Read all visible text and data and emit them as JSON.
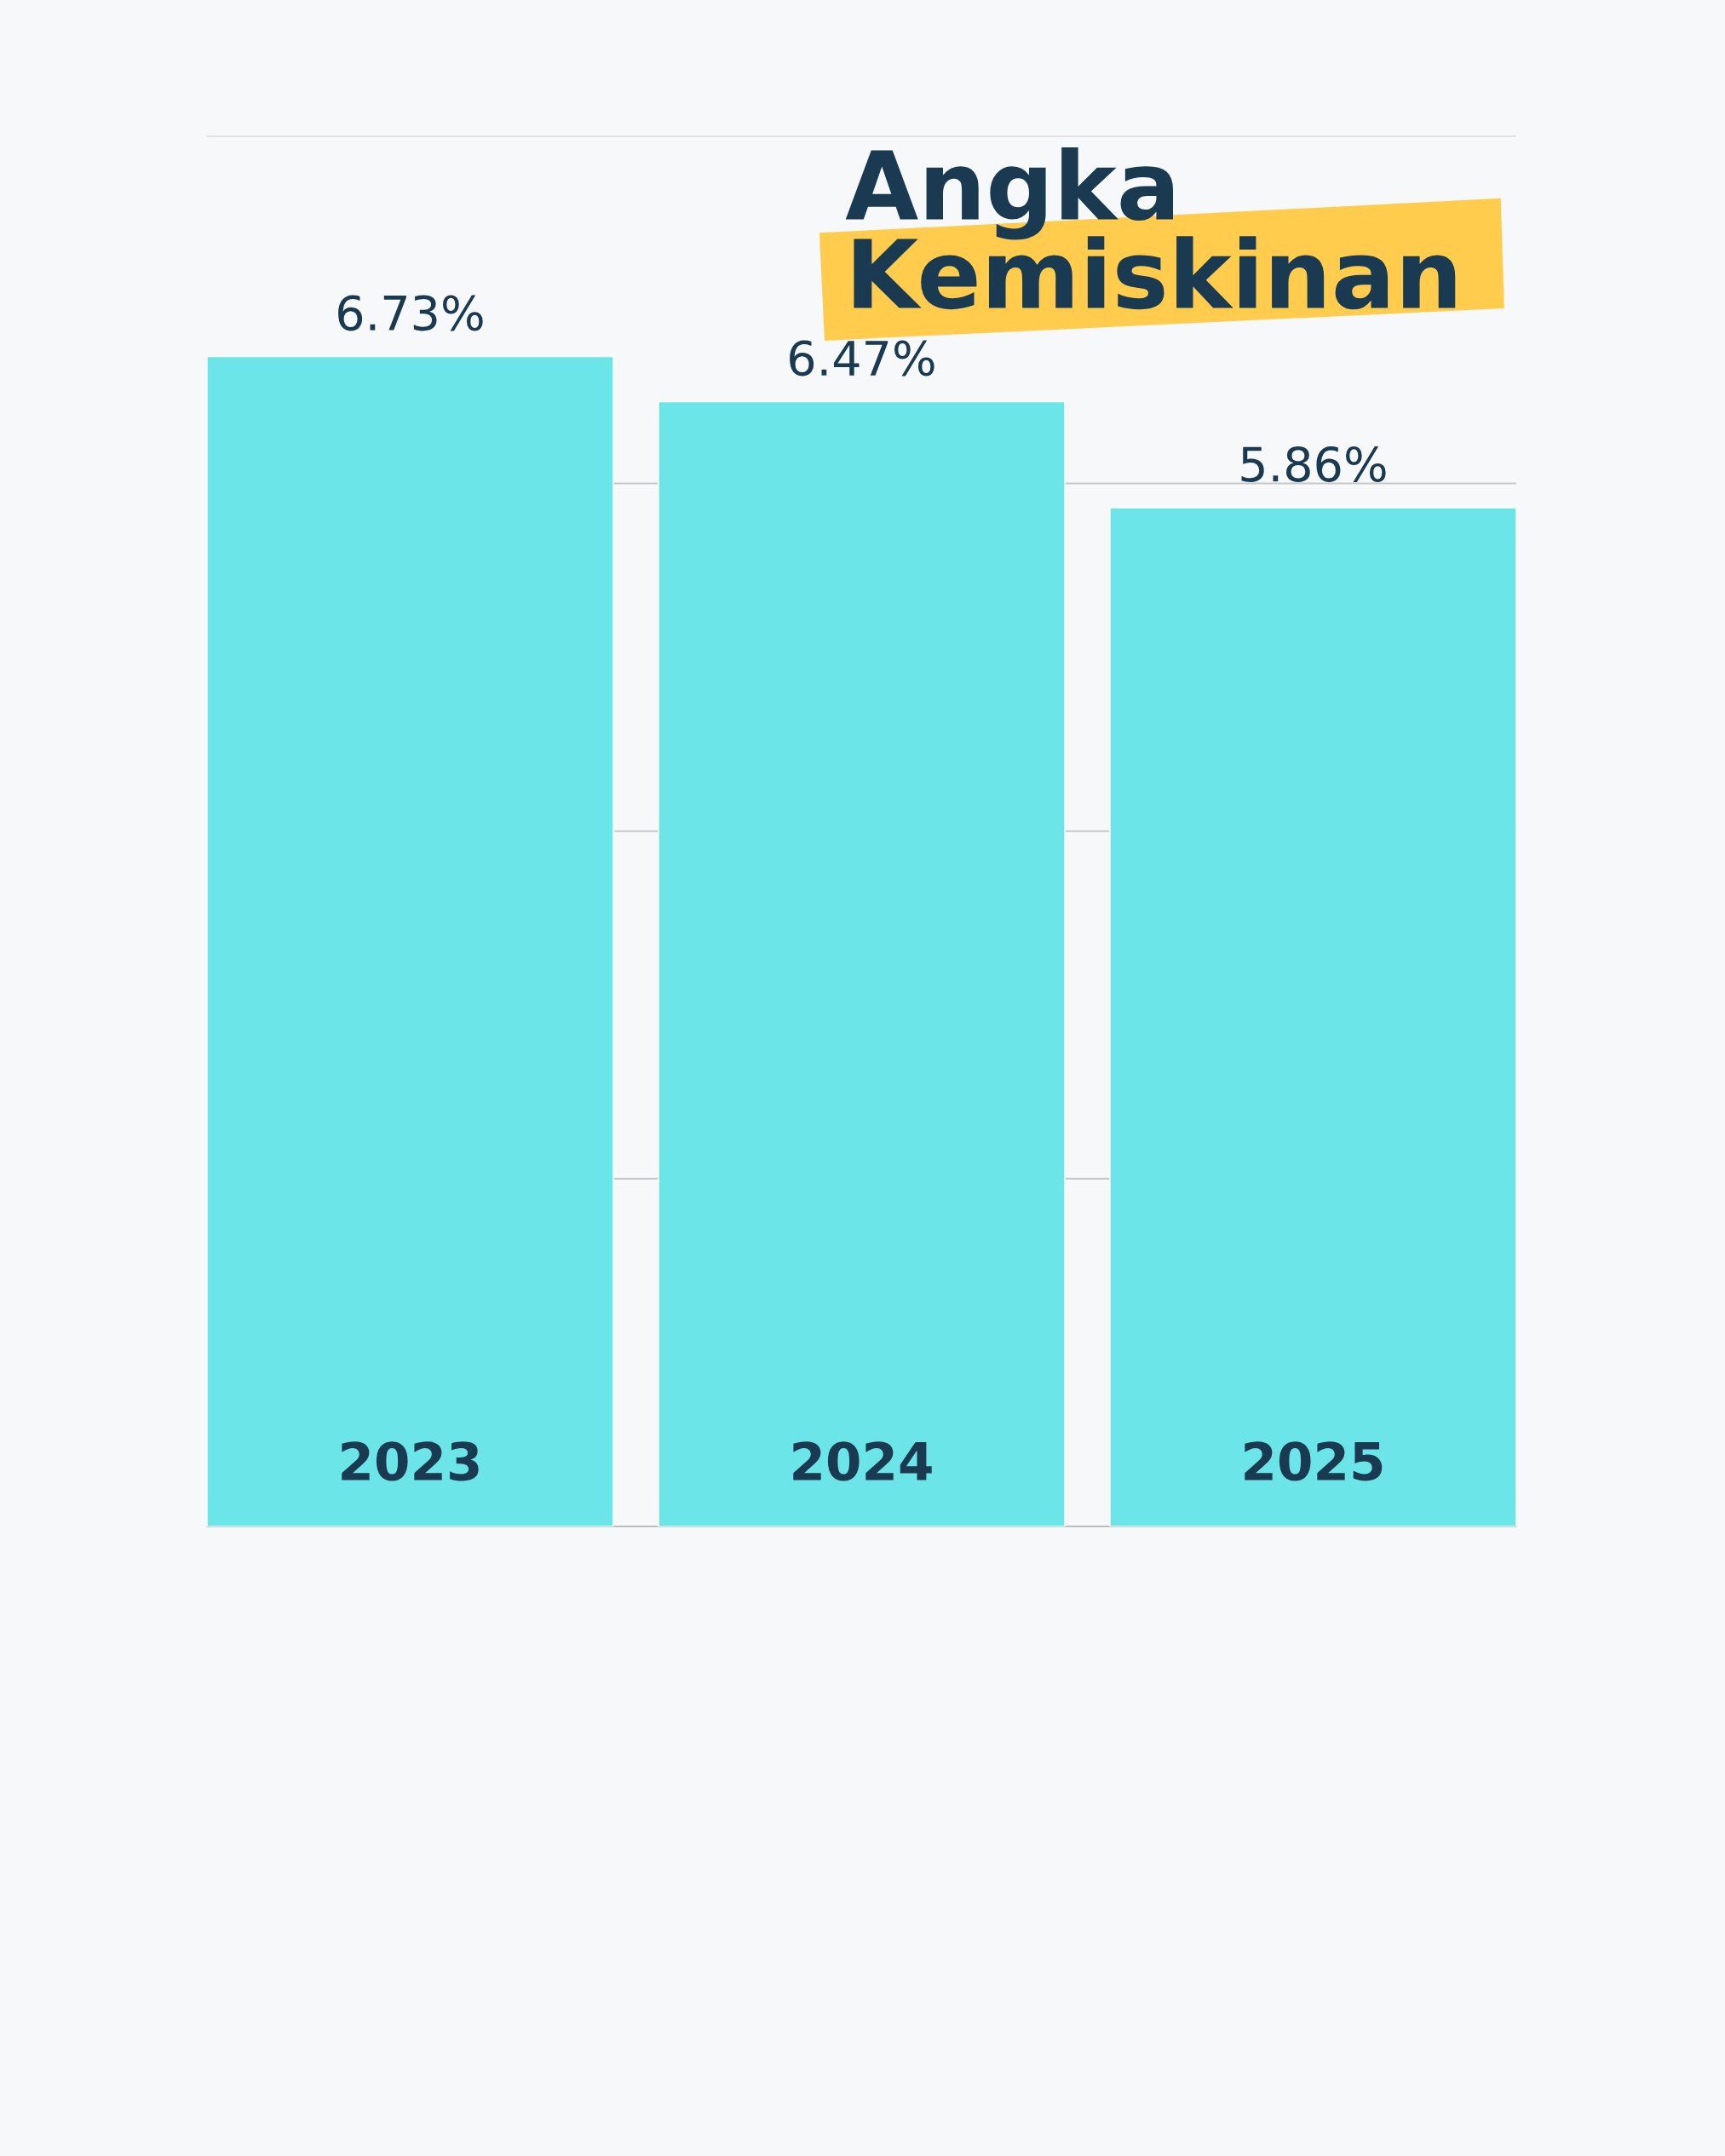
{
  "chart_data": {
    "type": "bar",
    "title": "Angka\nKemiskinan",
    "categories": [
      "2023",
      "2024",
      "2025"
    ],
    "values": [
      6.73,
      6.47,
      5.86
    ],
    "value_labels": [
      "6.73%",
      "6.47%",
      "5.86%"
    ],
    "color": "#6ce5e8",
    "ylim": [
      0,
      8
    ],
    "yticks": [
      {
        "value": 0,
        "label": null
      },
      {
        "value": 2,
        "label": null
      },
      {
        "value": 4,
        "label": null
      },
      {
        "value": 6,
        "label": null
      },
      {
        "value": 8,
        "label": null
      }
    ],
    "grid": "y"
  }
}
